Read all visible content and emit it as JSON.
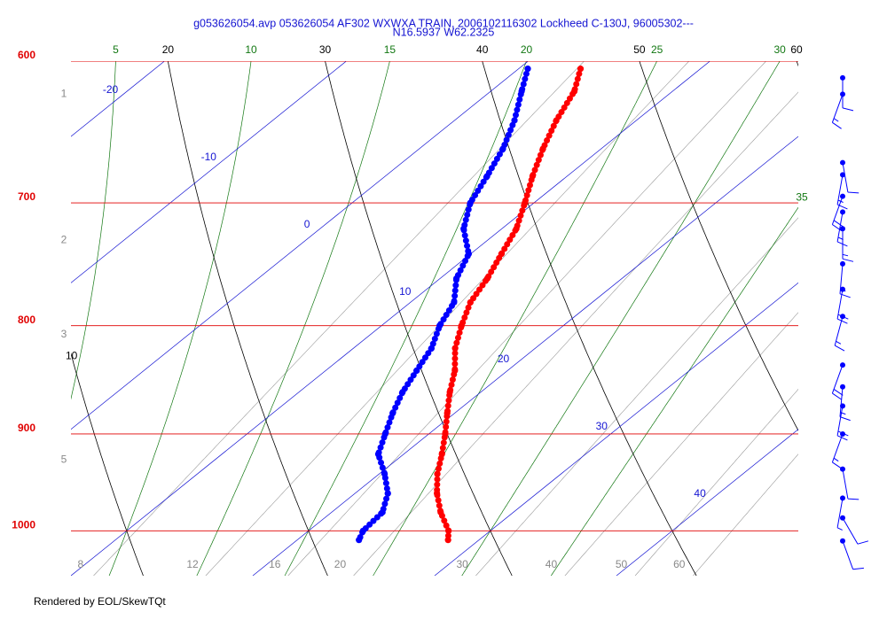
{
  "chart_data": {
    "type": "skewt",
    "title": "g053626054.avp 053626054 AF302 WXWXA TRAIN, 2006102116302 Lockheed C-130J, 96005302---",
    "subtitle": "N16.5937 W62.2325",
    "footer": "Rendered by EOL/SkewTQt",
    "log_scale": true,
    "ylim": [
      1050,
      600
    ],
    "yticks": [
      600,
      700,
      800,
      900,
      1000
    ],
    "xlim": [
      10,
      50
    ],
    "isotherms": [
      -20,
      -10,
      0,
      10,
      20,
      30,
      40
    ],
    "dry_adiabats": [
      10,
      20,
      30,
      40,
      50,
      60
    ],
    "moist_adiabats": [
      5,
      10,
      15,
      20,
      25,
      30,
      35
    ],
    "mixing_ratios": [
      8,
      12,
      16,
      20,
      30,
      40,
      50,
      60
    ],
    "height_labels": {
      "labels": [
        1,
        2,
        3,
        5
      ],
      "pressure": [
        622,
        729,
        808,
        926
      ]
    },
    "pressure": [
      605,
      620,
      640,
      660,
      680,
      700,
      720,
      740,
      760,
      780,
      800,
      820,
      840,
      860,
      880,
      900,
      920,
      940,
      960,
      980,
      1000,
      1010
    ],
    "series": [
      {
        "color": "#ff0000",
        "values": [
          3.4,
          4.6,
          5.6,
          6.8,
          8.1,
          9.5,
          10.8,
          11.7,
          12.6,
          13.3,
          14.4,
          15.6,
          17.1,
          18.3,
          19.6,
          20.9,
          22.1,
          23.2,
          24.5,
          26.0,
          27.7,
          28.3
        ]
      },
      {
        "color": "#0000ff",
        "values": [
          0.5,
          1.7,
          3.3,
          4.6,
          5.6,
          6.5,
          7.9,
          9.9,
          10.9,
          12.4,
          13.2,
          14.3,
          15.0,
          15.7,
          16.6,
          17.6,
          18.6,
          20.3,
          21.8,
          22.8,
          23.0,
          23.4
        ]
      }
    ],
    "wind": {
      "pressure": [
        611,
        622,
        670,
        679,
        695,
        707,
        720,
        748,
        769,
        792,
        835,
        855,
        873,
        900,
        935,
        965,
        986,
        1011
      ],
      "direction": [
        180,
        200,
        170,
        190,
        200,
        190,
        180,
        185,
        190,
        195,
        200,
        185,
        190,
        200,
        170,
        190,
        150,
        160
      ],
      "speed": [
        10,
        15,
        10,
        15,
        20,
        15,
        15,
        15,
        20,
        15,
        20,
        15,
        20,
        15,
        10,
        5,
        10,
        10
      ],
      "color": "#0000ff"
    }
  }
}
